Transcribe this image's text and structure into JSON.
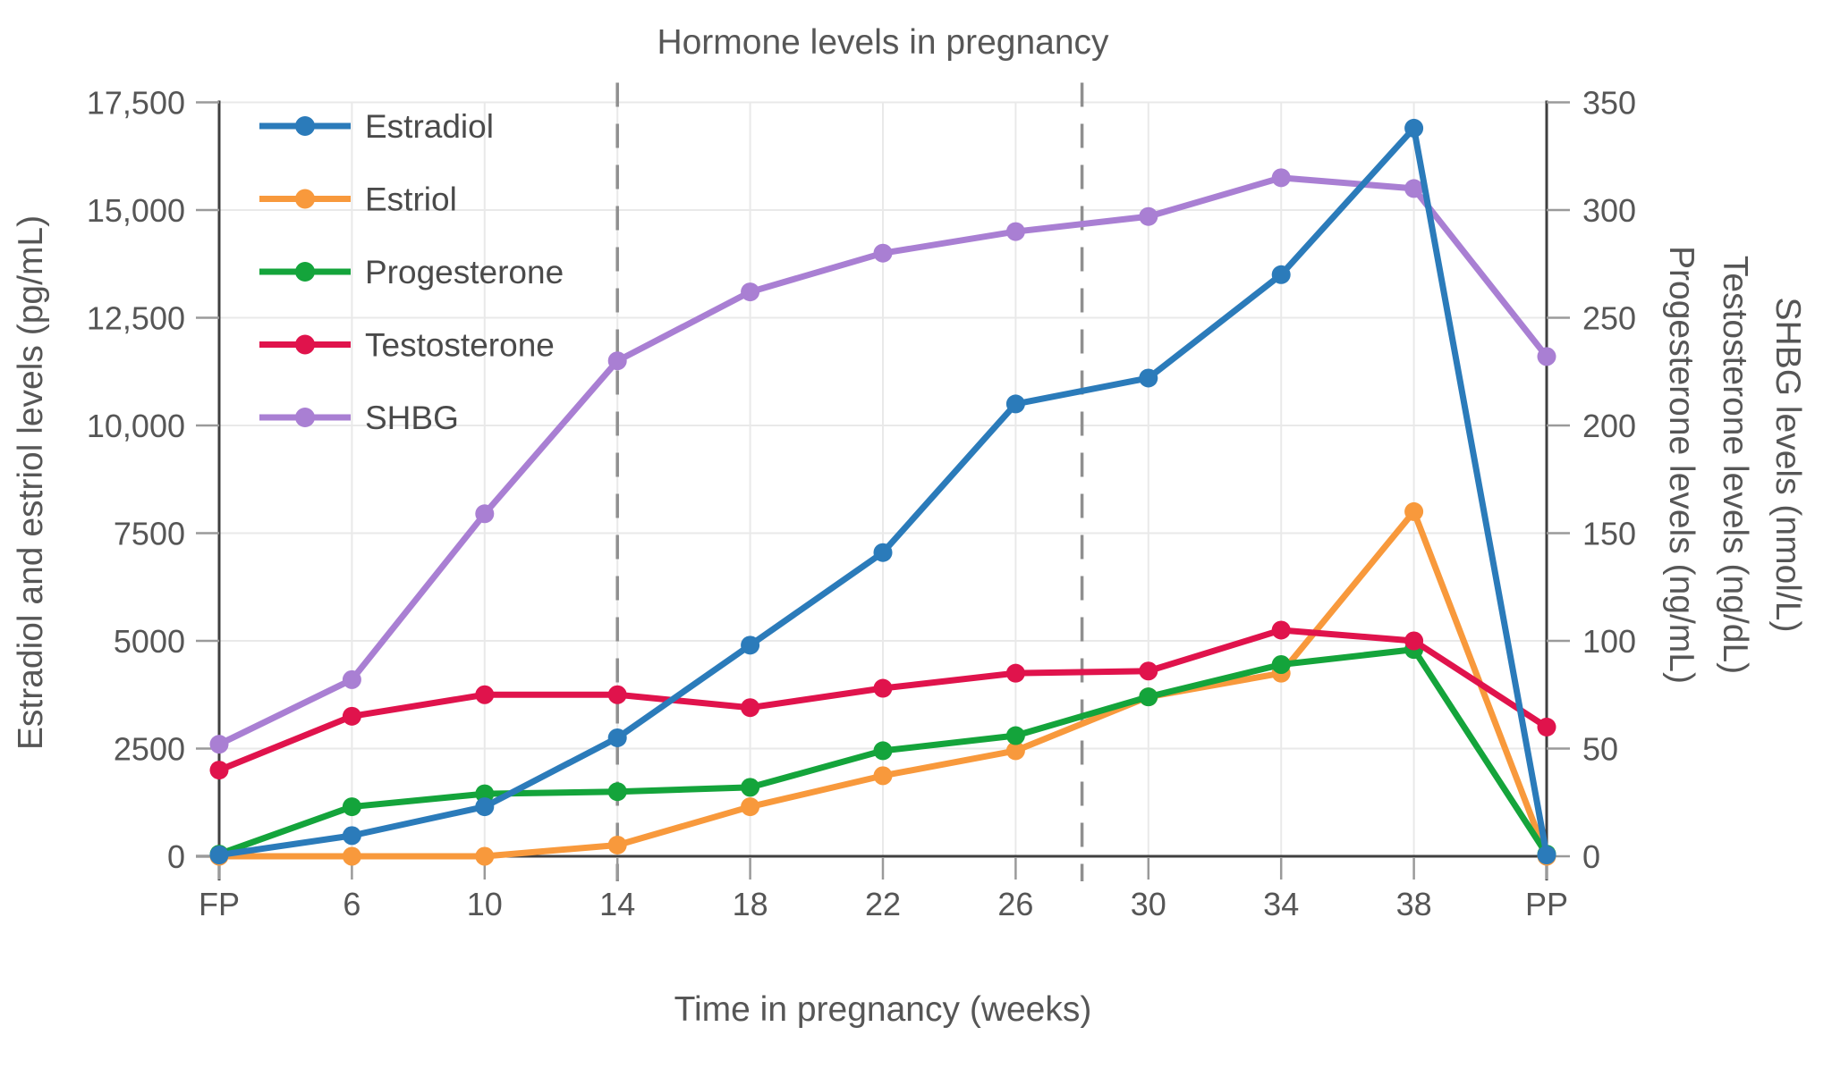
{
  "chart_data": {
    "type": "line",
    "title": "Hormone levels in pregnancy",
    "xlabel": "Time in pregnancy (weeks)",
    "ylabel_left": "Estradiol and estriol levels (pg/mL)",
    "ylabels_right": [
      "Progesterone levels (ng/mL)",
      "Testosterone levels (ng/dL)",
      "SHBG levels (nmol/L)"
    ],
    "categories": [
      "FP",
      "6",
      "10",
      "14",
      "18",
      "22",
      "26",
      "30",
      "34",
      "38",
      "PP"
    ],
    "left_axis": {
      "min": 0,
      "max": 17500,
      "tick_values": [
        0,
        2500,
        5000,
        7500,
        10000,
        12500,
        15000,
        17500
      ],
      "tick_labels": [
        "0",
        "2500",
        "5000",
        "7500",
        "10,000",
        "12,500",
        "15,000",
        "17,500"
      ]
    },
    "right_axis": {
      "min": 0,
      "max": 350,
      "tick_values": [
        0,
        50,
        100,
        150,
        200,
        250,
        300,
        350
      ],
      "tick_labels": [
        "0",
        "50",
        "100",
        "150",
        "200",
        "250",
        "300",
        "350"
      ]
    },
    "grid": true,
    "legend_position": "inside-top-left",
    "legend_entries": [
      "Estradiol",
      "Estriol",
      "Progesterone",
      "Testosterone",
      "SHBG"
    ],
    "dashed_vlines_at_weeks": [
      "14",
      "28"
    ],
    "series": [
      {
        "name": "Estradiol",
        "axis": "left",
        "unit": "pg/mL",
        "color": "#2b7bba",
        "values": [
          30,
          480,
          1150,
          2750,
          4900,
          7050,
          10500,
          11100,
          13500,
          16900,
          30
        ]
      },
      {
        "name": "Estriol",
        "axis": "left",
        "unit": "pg/mL",
        "color": "#f8993c",
        "values": [
          0,
          0,
          0,
          260,
          1150,
          1870,
          2450,
          3700,
          4250,
          8000,
          0
        ]
      },
      {
        "name": "Progesterone",
        "axis": "right",
        "unit": "ng/mL",
        "color": "#14a43b",
        "values": [
          1,
          23,
          29,
          30,
          32,
          49,
          56,
          74,
          89,
          96,
          1
        ]
      },
      {
        "name": "Testosterone",
        "axis": "right",
        "unit": "ng/dL",
        "color": "#e0134c",
        "values": [
          40,
          65,
          75,
          75,
          69,
          78,
          85,
          86,
          105,
          100,
          60
        ]
      },
      {
        "name": "SHBG",
        "axis": "right",
        "unit": "nmol/L",
        "color": "#a97fd3",
        "values": [
          52,
          82,
          159,
          230,
          262,
          280,
          290,
          297,
          315,
          310,
          232
        ]
      }
    ],
    "draw_order": [
      "Estriol",
      "Progesterone",
      "Testosterone",
      "SHBG",
      "Estradiol"
    ],
    "colors": {
      "grid": "#e9e9e9",
      "spine": "#3f3f3f",
      "tick": "#9a9a9a",
      "dashed_line": "#8f8f8f",
      "text": "#565656"
    }
  }
}
